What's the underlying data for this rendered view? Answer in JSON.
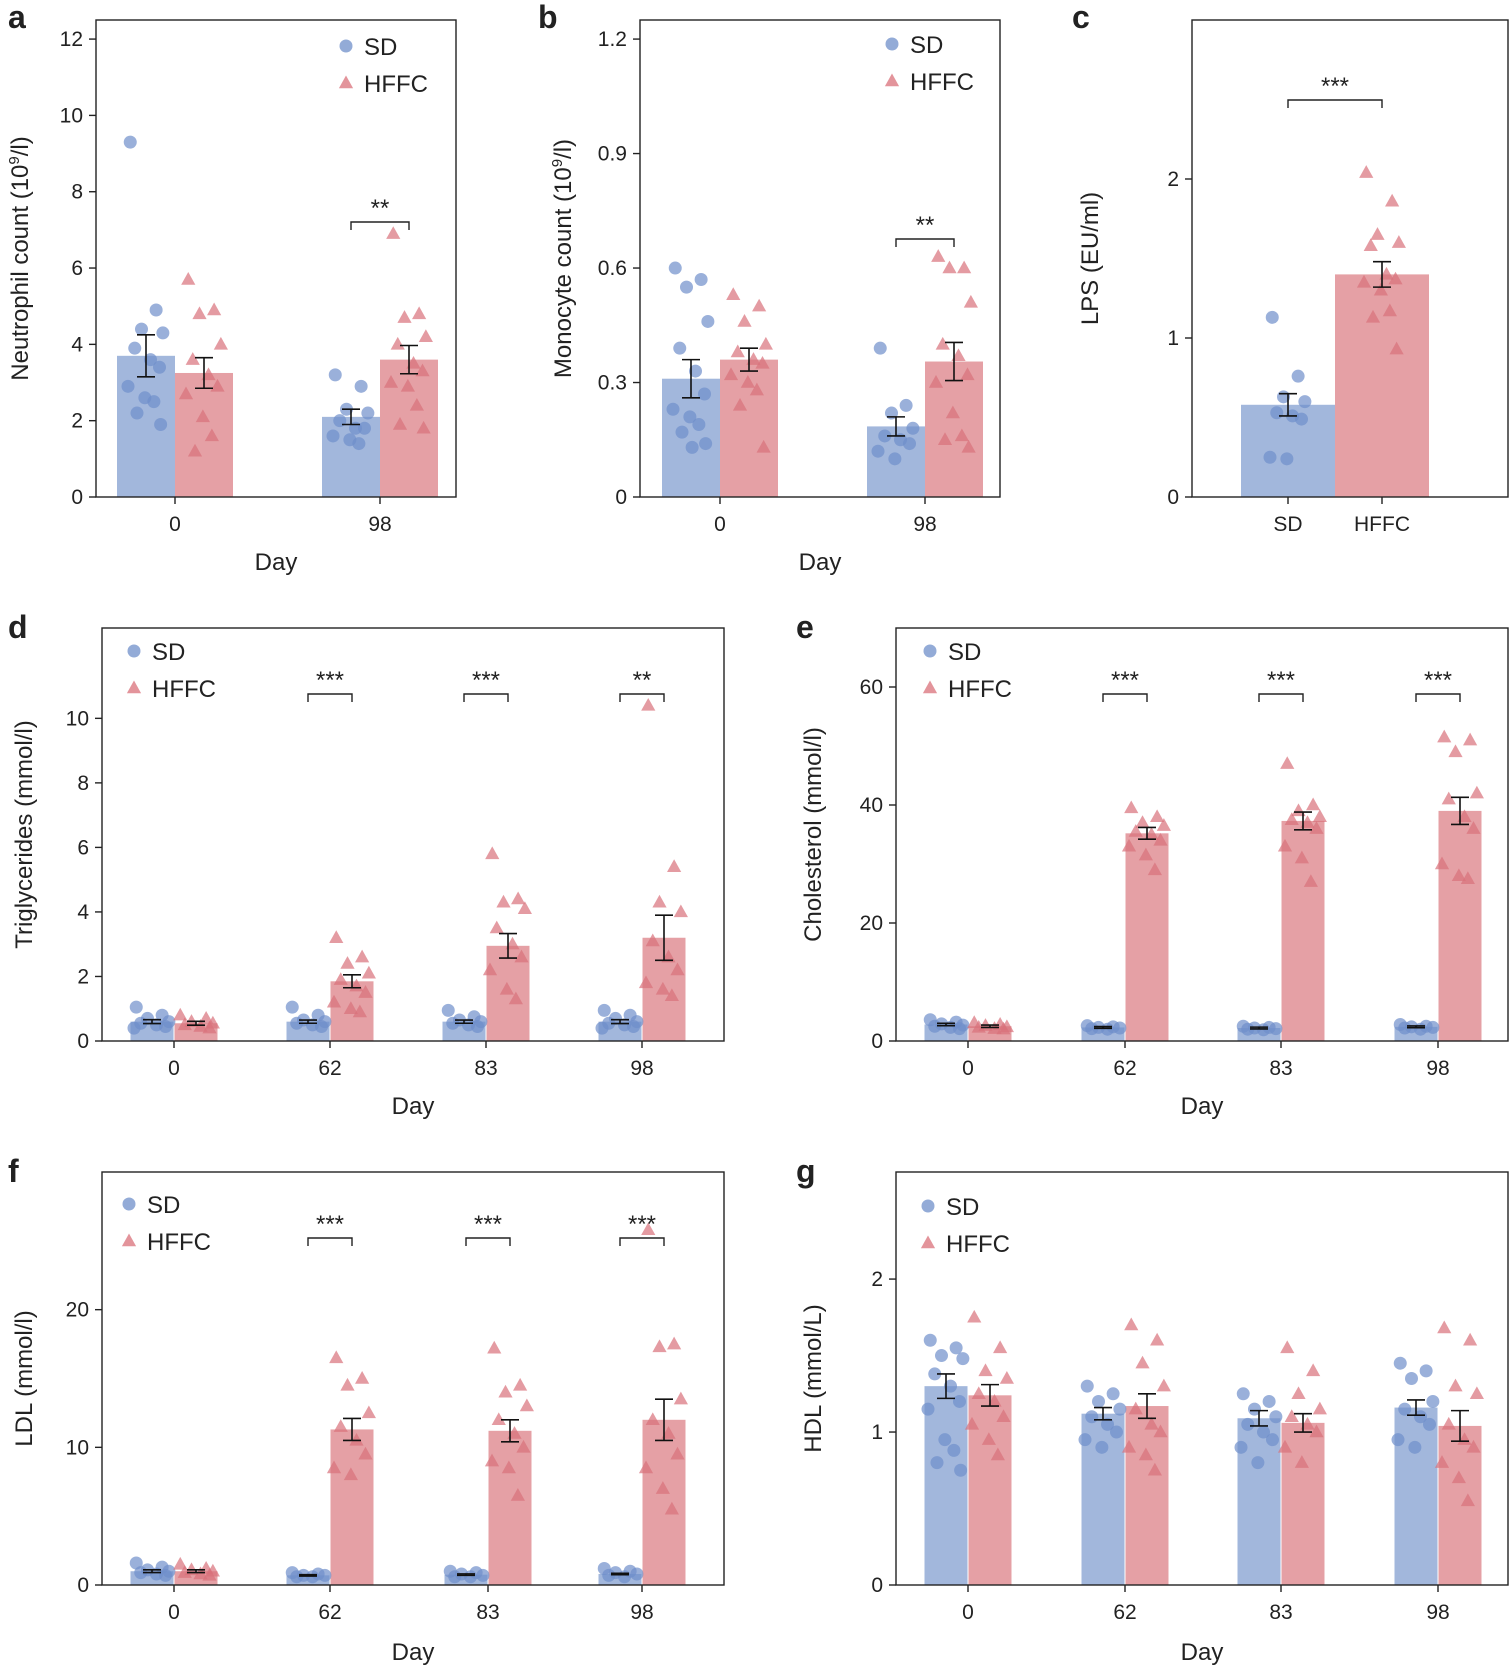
{
  "colors": {
    "SD": "#92aad6",
    "HFFC": "#e08f95",
    "SD_point": "#6f8fca",
    "HFFC_point": "#d9707a",
    "axis": "#222222",
    "errorbar": "#111111"
  },
  "chart_data": [
    {
      "panel": "a",
      "type": "bar",
      "xlabel": "Day",
      "ylabel": "Neutrophil count (10",
      "ylabel_sup": "9",
      "ylabel_tail": "/l)",
      "categories": [
        "0",
        "98"
      ],
      "ylim": [
        0,
        12.5
      ],
      "yticks": [
        0,
        2,
        4,
        6,
        8,
        10,
        12
      ],
      "legend": [
        "SD",
        "HFFC"
      ],
      "legend_position": "top-right",
      "series": [
        {
          "name": "SD",
          "marker": "circle",
          "values": [
            3.7,
            2.1
          ],
          "errors": [
            0.55,
            0.2
          ],
          "points": [
            [
              9.3,
              4.9,
              4.4,
              4.3,
              3.9,
              3.6,
              3.4,
              2.9,
              2.6,
              2.5,
              2.2,
              1.9
            ],
            [
              3.2,
              2.9,
              2.3,
              2.2,
              2.0,
              1.8,
              1.8,
              1.6,
              1.5,
              1.4
            ]
          ]
        },
        {
          "name": "HFFC",
          "marker": "triangle",
          "values": [
            3.25,
            3.6
          ],
          "errors": [
            0.4,
            0.37
          ],
          "points": [
            [
              5.7,
              4.9,
              4.8,
              4.0,
              3.6,
              3.2,
              2.9,
              2.7,
              2.1,
              1.6,
              1.2
            ],
            [
              6.9,
              4.8,
              4.7,
              4.2,
              4.0,
              3.5,
              3.3,
              3.0,
              2.9,
              2.4,
              1.9,
              1.8
            ]
          ]
        }
      ],
      "significance": [
        {
          "category": "98",
          "label": "**"
        }
      ]
    },
    {
      "panel": "b",
      "type": "bar",
      "xlabel": "Day",
      "ylabel": "Monocyte count (10",
      "ylabel_sup": "9",
      "ylabel_tail": "/l)",
      "categories": [
        "0",
        "98"
      ],
      "ylim": [
        0,
        1.25
      ],
      "yticks": [
        0,
        0.3,
        0.6,
        0.9,
        1.2
      ],
      "legend": [
        "SD",
        "HFFC"
      ],
      "legend_position": "top-right",
      "series": [
        {
          "name": "SD",
          "marker": "circle",
          "values": [
            0.31,
            0.185
          ],
          "errors": [
            0.05,
            0.025
          ],
          "points": [
            [
              0.6,
              0.57,
              0.55,
              0.46,
              0.39,
              0.33,
              0.27,
              0.23,
              0.21,
              0.19,
              0.17,
              0.14,
              0.13
            ],
            [
              0.39,
              0.24,
              0.22,
              0.18,
              0.16,
              0.15,
              0.14,
              0.12,
              0.1
            ]
          ]
        },
        {
          "name": "HFFC",
          "marker": "triangle",
          "values": [
            0.36,
            0.355
          ],
          "errors": [
            0.03,
            0.05
          ],
          "points": [
            [
              0.53,
              0.5,
              0.46,
              0.4,
              0.38,
              0.36,
              0.35,
              0.32,
              0.3,
              0.28,
              0.24,
              0.13
            ],
            [
              0.63,
              0.6,
              0.6,
              0.51,
              0.4,
              0.37,
              0.32,
              0.3,
              0.22,
              0.16,
              0.15,
              0.13
            ]
          ]
        }
      ],
      "significance": [
        {
          "category": "98",
          "label": "**"
        }
      ]
    },
    {
      "panel": "c",
      "type": "bar",
      "xlabel": "",
      "ylabel": "LPS (EU/ml)",
      "categories": [
        "SD",
        "HFFC"
      ],
      "ylim": [
        0,
        3.0
      ],
      "yticks": [
        0,
        1,
        2
      ],
      "legend": [],
      "legend_position": "none",
      "series": [
        {
          "name": "SD",
          "marker": "circle",
          "values": [
            0.58,
            null
          ],
          "errors": [
            0.07,
            null
          ],
          "points": [
            [
              1.13,
              0.76,
              0.63,
              0.6,
              0.53,
              0.51,
              0.49,
              0.25,
              0.24
            ],
            []
          ]
        },
        {
          "name": "HFFC",
          "marker": "triangle",
          "values": [
            null,
            1.4
          ],
          "errors": [
            null,
            0.08
          ],
          "points": [
            [],
            [
              2.04,
              1.86,
              1.65,
              1.6,
              1.58,
              1.4,
              1.37,
              1.35,
              1.3,
              1.17,
              1.13,
              0.93
            ]
          ]
        }
      ],
      "significance": [
        {
          "category": "SD-HFFC",
          "label": "***"
        }
      ]
    },
    {
      "panel": "d",
      "type": "bar",
      "xlabel": "Day",
      "ylabel": "Triglycerides (mmol/l)",
      "categories": [
        "0",
        "62",
        "83",
        "98"
      ],
      "ylim": [
        0,
        12.8
      ],
      "yticks": [
        0,
        2,
        4,
        6,
        8,
        10
      ],
      "legend": [
        "SD",
        "HFFC"
      ],
      "legend_position": "top-left",
      "series": [
        {
          "name": "SD",
          "marker": "circle",
          "values": [
            0.6,
            0.6,
            0.6,
            0.6
          ],
          "errors": [
            0.06,
            0.05,
            0.05,
            0.06
          ],
          "points": [
            [
              1.05,
              0.8,
              0.7,
              0.6,
              0.55,
              0.5,
              0.45,
              0.4
            ],
            [
              1.05,
              0.8,
              0.65,
              0.6,
              0.55,
              0.5,
              0.45
            ],
            [
              0.95,
              0.75,
              0.65,
              0.6,
              0.55,
              0.5,
              0.45
            ],
            [
              0.95,
              0.8,
              0.7,
              0.6,
              0.55,
              0.5,
              0.45,
              0.4
            ]
          ]
        },
        {
          "name": "HFFC",
          "marker": "triangle",
          "values": [
            0.55,
            1.85,
            2.95,
            3.2
          ],
          "errors": [
            0.06,
            0.2,
            0.38,
            0.7
          ],
          "points": [
            [
              0.8,
              0.7,
              0.6,
              0.55,
              0.5,
              0.45,
              0.4
            ],
            [
              3.2,
              2.6,
              2.4,
              2.1,
              1.9,
              1.7,
              1.5,
              1.2,
              1.0,
              0.9
            ],
            [
              5.8,
              4.4,
              4.3,
              4.1,
              3.5,
              3.0,
              2.6,
              2.2,
              1.6,
              1.3
            ],
            [
              10.4,
              5.4,
              4.3,
              4.0,
              3.1,
              2.6,
              2.2,
              1.8,
              1.6,
              1.4
            ]
          ]
        }
      ],
      "significance": [
        {
          "category": "62",
          "label": "***"
        },
        {
          "category": "83",
          "label": "***"
        },
        {
          "category": "98",
          "label": "**"
        }
      ]
    },
    {
      "panel": "e",
      "type": "bar",
      "xlabel": "Day",
      "ylabel": "Cholesterol (mmol/l)",
      "categories": [
        "0",
        "62",
        "83",
        "98"
      ],
      "ylim": [
        0,
        70
      ],
      "yticks": [
        0,
        20,
        40,
        60
      ],
      "legend": [
        "SD",
        "HFFC"
      ],
      "legend_position": "top-left",
      "series": [
        {
          "name": "SD",
          "marker": "circle",
          "values": [
            2.8,
            2.3,
            2.2,
            2.4
          ],
          "errors": [
            0.2,
            0.15,
            0.15,
            0.15
          ],
          "points": [
            [
              3.6,
              3.2,
              2.9,
              2.7,
              2.5,
              2.3,
              2.1
            ],
            [
              2.6,
              2.4,
              2.3,
              2.2,
              2.1,
              2.0
            ],
            [
              2.5,
              2.3,
              2.2,
              2.1,
              2.0,
              1.9
            ],
            [
              2.8,
              2.5,
              2.4,
              2.3,
              2.2,
              2.0
            ]
          ]
        },
        {
          "name": "HFFC",
          "marker": "triangle",
          "values": [
            2.5,
            35.2,
            37.3,
            39.0
          ],
          "errors": [
            0.2,
            1.0,
            1.5,
            2.3
          ],
          "points": [
            [
              3.1,
              2.8,
              2.6,
              2.4,
              2.3,
              2.1,
              2.0
            ],
            [
              39.5,
              38.0,
              37.0,
              36.5,
              35.5,
              35.0,
              34.0,
              33.0,
              31.5,
              29.0
            ],
            [
              47.0,
              40.0,
              39.0,
              38.0,
              37.5,
              37.0,
              36.0,
              33.0,
              31.0,
              27.0
            ],
            [
              51.5,
              51.0,
              49.0,
              42.0,
              41.0,
              38.0,
              36.0,
              30.0,
              28.0,
              27.5
            ]
          ]
        }
      ],
      "significance": [
        {
          "category": "62",
          "label": "***"
        },
        {
          "category": "83",
          "label": "***"
        },
        {
          "category": "98",
          "label": "***"
        }
      ]
    },
    {
      "panel": "f",
      "type": "bar",
      "xlabel": "Day",
      "ylabel": "LDL (mmol/l)",
      "categories": [
        "0",
        "62",
        "83",
        "98"
      ],
      "ylim": [
        0,
        30
      ],
      "yticks": [
        0,
        10,
        20
      ],
      "legend": [
        "SD",
        "HFFC"
      ],
      "legend_position": "top-left",
      "series": [
        {
          "name": "SD",
          "marker": "circle",
          "values": [
            1.0,
            0.7,
            0.75,
            0.8
          ],
          "errors": [
            0.1,
            0.05,
            0.05,
            0.05
          ],
          "points": [
            [
              1.6,
              1.3,
              1.1,
              1.0,
              0.9,
              0.8,
              0.7
            ],
            [
              0.9,
              0.8,
              0.7,
              0.7,
              0.6,
              0.6
            ],
            [
              1.0,
              0.9,
              0.8,
              0.7,
              0.6,
              0.6
            ],
            [
              1.2,
              1.0,
              0.9,
              0.8,
              0.7,
              0.6
            ]
          ]
        },
        {
          "name": "HFFC",
          "marker": "triangle",
          "values": [
            1.0,
            11.3,
            11.2,
            12.0
          ],
          "errors": [
            0.1,
            0.8,
            0.8,
            1.5
          ],
          "points": [
            [
              1.5,
              1.2,
              1.1,
              1.0,
              0.9,
              0.8,
              0.7
            ],
            [
              16.5,
              15.0,
              14.5,
              12.5,
              11.5,
              10.5,
              9.5,
              8.5,
              8.0
            ],
            [
              17.2,
              14.5,
              14.0,
              13.0,
              12.0,
              11.0,
              10.0,
              9.0,
              8.5,
              6.5
            ],
            [
              25.8,
              17.5,
              17.3,
              13.5,
              12.0,
              11.0,
              9.5,
              8.5,
              7.0,
              5.5
            ]
          ]
        }
      ],
      "significance": [
        {
          "category": "62",
          "label": "***"
        },
        {
          "category": "83",
          "label": "***"
        },
        {
          "category": "98",
          "label": "***"
        }
      ]
    },
    {
      "panel": "g",
      "type": "bar",
      "xlabel": "Day",
      "ylabel": "HDL (mmol/L)",
      "categories": [
        "0",
        "62",
        "83",
        "98"
      ],
      "ylim": [
        0,
        2.7
      ],
      "yticks": [
        0,
        1,
        2
      ],
      "legend": [
        "SD",
        "HFFC"
      ],
      "legend_position": "top-left",
      "series": [
        {
          "name": "SD",
          "marker": "circle",
          "values": [
            1.3,
            1.12,
            1.09,
            1.16
          ],
          "errors": [
            0.08,
            0.04,
            0.05,
            0.05
          ],
          "points": [
            [
              1.6,
              1.55,
              1.5,
              1.48,
              1.38,
              1.3,
              1.2,
              1.15,
              0.95,
              0.88,
              0.8,
              0.75
            ],
            [
              1.3,
              1.25,
              1.2,
              1.15,
              1.1,
              1.05,
              1.0,
              0.95,
              0.9
            ],
            [
              1.25,
              1.2,
              1.15,
              1.1,
              1.05,
              1.0,
              0.95,
              0.9,
              0.8
            ],
            [
              1.45,
              1.4,
              1.35,
              1.2,
              1.15,
              1.1,
              1.05,
              0.95,
              0.9
            ]
          ]
        },
        {
          "name": "HFFC",
          "marker": "triangle",
          "values": [
            1.24,
            1.17,
            1.06,
            1.04
          ],
          "errors": [
            0.07,
            0.08,
            0.06,
            0.1
          ],
          "points": [
            [
              1.75,
              1.55,
              1.4,
              1.35,
              1.25,
              1.2,
              1.1,
              1.05,
              0.95,
              0.85
            ],
            [
              1.7,
              1.6,
              1.45,
              1.3,
              1.15,
              1.05,
              1.0,
              0.9,
              0.85,
              0.75
            ],
            [
              1.55,
              1.4,
              1.25,
              1.15,
              1.1,
              1.05,
              1.0,
              0.9,
              0.8
            ],
            [
              1.68,
              1.6,
              1.3,
              1.25,
              1.05,
              0.95,
              0.9,
              0.8,
              0.7,
              0.55
            ]
          ]
        }
      ],
      "significance": []
    }
  ]
}
